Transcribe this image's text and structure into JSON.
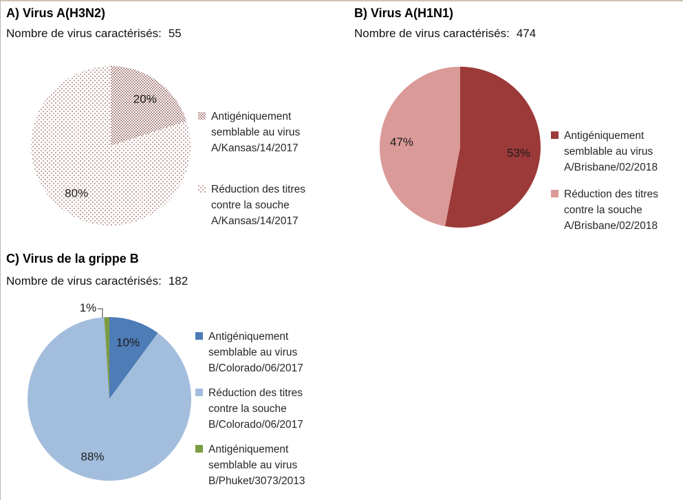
{
  "page": {
    "background": "#ffffff",
    "top_border_color": "#cdc3b0",
    "left_border_color": "#b5b5b5",
    "text_color": "#262626"
  },
  "chart_data": [
    {
      "type": "pie",
      "title": "A) Virus A(H3N2)",
      "subtitle": "Nombre de virus caractérisés:",
      "count": "55",
      "labels": [
        "Antigéniquement semblable au virus A/Kansas/14/2017",
        "Réduction des titres contre la souche A/Kansas/14/2017"
      ],
      "values": [
        20,
        80
      ],
      "value_labels": [
        "20%",
        "80%"
      ],
      "colors": [
        "pattern:pat-dense",
        "pattern:pat-light"
      ],
      "pattern_dot_colors": {
        "pat-dense": "#b18a88",
        "pat-light": "#c4a2a1"
      },
      "legend_lines": [
        [
          "Antigéniquement",
          "semblable au virus",
          "A/Kansas/14/2017"
        ],
        [
          "Réduction des titres",
          "contre la souche",
          "A/Kansas/14/2017"
        ]
      ],
      "outside_labels": [
        false,
        false
      ],
      "start_angle": 0,
      "direction": "clockwise",
      "legend_position": "right"
    },
    {
      "type": "pie",
      "title": "B) Virus A(H1N1)",
      "subtitle": "Nombre de virus caractérisés:",
      "count": "474",
      "labels": [
        "Antigéniquement semblable au virus A/Brisbane/02/2018",
        "Réduction des titres contre la souche A/Brisbane/02/2018"
      ],
      "values": [
        53,
        47
      ],
      "value_labels": [
        "53%",
        "47%"
      ],
      "colors": [
        "#9c3a39",
        "#da9a98"
      ],
      "legend_lines": [
        [
          "Antigéniquement",
          "semblable au virus",
          "A/Brisbane/02/2018"
        ],
        [
          "Réduction des titres",
          "contre la souche",
          "A/Brisbane/02/2018"
        ]
      ],
      "outside_labels": [
        false,
        false
      ],
      "start_angle": 0,
      "direction": "clockwise",
      "legend_position": "right"
    },
    {
      "type": "pie",
      "title": "C) Virus de la grippe B",
      "subtitle": "Nombre de virus caractérisés:",
      "count": "182",
      "labels": [
        "Antigéniquement semblable au virus B/Colorado/06/2017",
        "Réduction des titres contre la souche B/Colorado/06/2017",
        "Antigéniquement semblable au virus B/Phuket/3073/2013"
      ],
      "values": [
        10,
        88,
        1
      ],
      "value_labels": [
        "10%",
        "88%",
        "1%"
      ],
      "colors": [
        "#4d7cb6",
        "#a3bddd",
        "#7c9c42"
      ],
      "legend_lines": [
        [
          "Antigéniquement",
          "semblable au virus",
          "B/Colorado/06/2017"
        ],
        [
          "Réduction des titres",
          "contre la souche",
          "B/Colorado/06/2017"
        ],
        [
          "Antigéniquement",
          "semblable au virus",
          "B/Phuket/3073/2013"
        ]
      ],
      "outside_labels": [
        false,
        false,
        true
      ],
      "start_angle": 0,
      "direction": "clockwise",
      "legend_position": "right"
    }
  ]
}
